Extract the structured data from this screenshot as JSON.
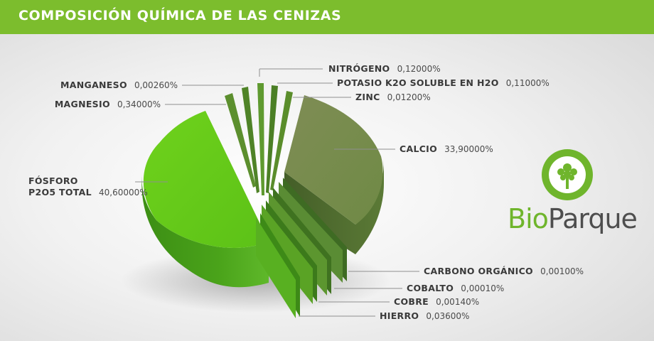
{
  "header": {
    "title": "COMPOSICIÓN QUÍMICA DE LAS CENIZAS"
  },
  "brand": {
    "bio": "Bio",
    "parque": "Parque",
    "accent": "#6fb52c",
    "dark": "#4e4e4e"
  },
  "colors": {
    "header": "#7cbd2d",
    "fosforo": "#6fcf1d",
    "calcio": "#8a9a5a",
    "thin": "#4f8a24"
  },
  "chart_data": {
    "type": "pie",
    "title": "COMPOSICIÓN QUÍMICA DE LAS CENIZAS",
    "unit": "%",
    "exploded": true,
    "slices": [
      {
        "name": "FÓSFORO",
        "name2": "P2O5 TOTAL",
        "value": 40.6,
        "label": "40,60000%"
      },
      {
        "name": "CALCIO",
        "value": 33.9,
        "label": "33,90000%"
      },
      {
        "name": "MAGNESIO",
        "value": 0.34,
        "label": "0,34000%"
      },
      {
        "name": "MANGANESO",
        "value": 0.0026,
        "label": "0,00260%"
      },
      {
        "name": "NITRÓGENO",
        "value": 0.12,
        "label": "0,12000%"
      },
      {
        "name": "POTASIO K2O SOLUBLE EN H2O",
        "value": 0.11,
        "label": "0,11000%"
      },
      {
        "name": "ZINC",
        "value": 0.012,
        "label": "0,01200%"
      },
      {
        "name": "CARBONO ORGÁNICO",
        "value": 0.001,
        "label": "0,00100%"
      },
      {
        "name": "COBALTO",
        "value": 0.0001,
        "label": "0,00010%"
      },
      {
        "name": "COBRE",
        "value": 0.0014,
        "label": "0,00140%"
      },
      {
        "name": "HIERRO",
        "value": 0.036,
        "label": "0,03600%"
      }
    ]
  }
}
